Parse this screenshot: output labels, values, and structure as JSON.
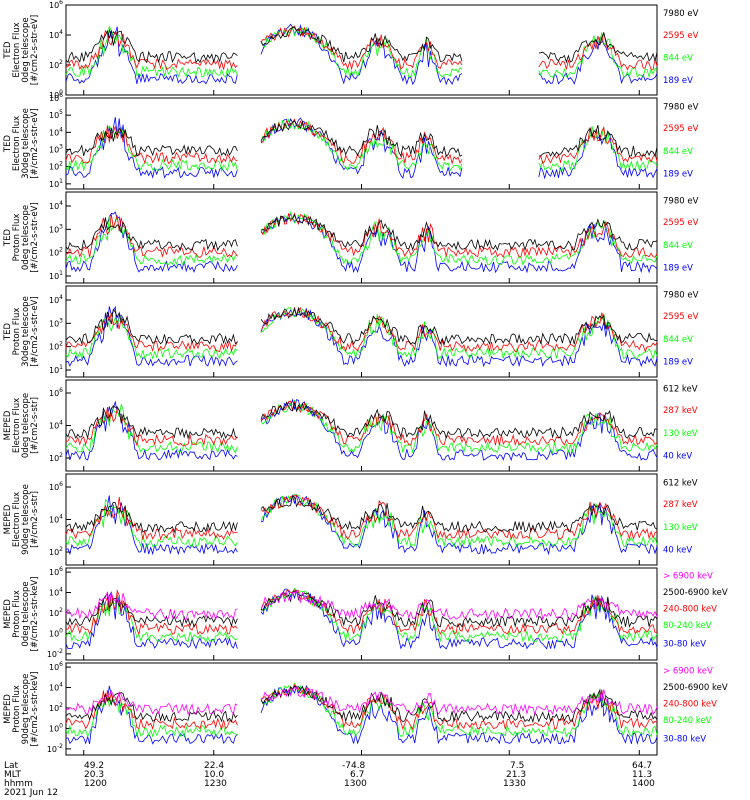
{
  "x_axis": {
    "row_labels": [
      "Lat",
      "MLT",
      "hhmm",
      "2021 Jun 12"
    ],
    "columns": [
      {
        "lat": "49.2",
        "mlt": "20.3",
        "hhmm": "1200"
      },
      {
        "lat": "22.4",
        "mlt": "10.0",
        "hhmm": "1230"
      },
      {
        "lat": "-74.8",
        "mlt": "6.7",
        "hhmm": "1300"
      },
      {
        "lat": "7.5",
        "mlt": "21.3",
        "hhmm": "1330"
      },
      {
        "lat": "64.7",
        "mlt": "11.3",
        "hhmm": "1400"
      }
    ]
  },
  "colors": {
    "black": "#000000",
    "red": "#ff0000",
    "green": "#00ff00",
    "blue": "#0000ff",
    "magenta": "#ff00ff"
  },
  "chart_data": [
    {
      "type": "line",
      "ylabel_lines": [
        "TED",
        "Electron Flux",
        "0deg telescope",
        "[#/cm2-s-str-eV]"
      ],
      "yticks": [
        "10^0",
        "10^2",
        "10^4",
        "10^6"
      ],
      "ylim_exp": [
        0,
        6
      ],
      "legend": [
        {
          "text": "7980 eV",
          "color": "#000000"
        },
        {
          "text": "2595 eV",
          "color": "#ff0000"
        },
        {
          "text": "844 eV",
          "color": "#00ff00"
        },
        {
          "text": "189 eV",
          "color": "#0000ff"
        }
      ]
    },
    {
      "type": "line",
      "ylabel_lines": [
        "TED",
        "Electron Flux",
        "30deg telescope",
        "[#/cm2-s-str-eV]"
      ],
      "yticks": [
        "10^1",
        "10^2",
        "10^3",
        "10^4",
        "10^5",
        "10^6"
      ],
      "ylim_exp": [
        0.7,
        6
      ],
      "legend": [
        {
          "text": "7980 eV",
          "color": "#000000"
        },
        {
          "text": "2595 eV",
          "color": "#ff0000"
        },
        {
          "text": "844 eV",
          "color": "#00ff00"
        },
        {
          "text": "189 eV",
          "color": "#0000ff"
        }
      ]
    },
    {
      "type": "line",
      "ylabel_lines": [
        "TED",
        "Proton Flux",
        "0deg telescope",
        "[#/cm2-s-str-eV]"
      ],
      "yticks": [
        "10^1",
        "10^2",
        "10^3",
        "10^4"
      ],
      "ylim_exp": [
        0.7,
        4.6
      ],
      "legend": [
        {
          "text": "7980 eV",
          "color": "#000000"
        },
        {
          "text": "2595 eV",
          "color": "#ff0000"
        },
        {
          "text": "844 eV",
          "color": "#00ff00"
        },
        {
          "text": "189 eV",
          "color": "#0000ff"
        }
      ]
    },
    {
      "type": "line",
      "ylabel_lines": [
        "TED",
        "Proton Flux",
        "30deg telescope",
        "[#/cm2-s-str-eV]"
      ],
      "yticks": [
        "10^1",
        "10^2",
        "10^3",
        "10^4"
      ],
      "ylim_exp": [
        0.7,
        4.6
      ],
      "legend": [
        {
          "text": "7980 eV",
          "color": "#000000"
        },
        {
          "text": "2595 eV",
          "color": "#ff0000"
        },
        {
          "text": "844 eV",
          "color": "#00ff00"
        },
        {
          "text": "189 eV",
          "color": "#0000ff"
        }
      ]
    },
    {
      "type": "line",
      "ylabel_lines": [
        "MEPED",
        "Electron Flux",
        "0deg telescope",
        "[#/cm2-s-str]"
      ],
      "yticks": [
        "10^2",
        "10^4",
        "10^6"
      ],
      "ylim_exp": [
        1.2,
        6.8
      ],
      "legend": [
        {
          "text": "612 keV",
          "color": "#000000"
        },
        {
          "text": "287 keV",
          "color": "#ff0000"
        },
        {
          "text": "130 keV",
          "color": "#00ff00"
        },
        {
          "text": "40 keV",
          "color": "#0000ff"
        }
      ]
    },
    {
      "type": "line",
      "ylabel_lines": [
        "MEPED",
        "Electron Flux",
        "90deg telescope",
        "[#/cm2-s-str]"
      ],
      "yticks": [
        "10^2",
        "10^4",
        "10^6"
      ],
      "ylim_exp": [
        1.2,
        6.8
      ],
      "legend": [
        {
          "text": "612 keV",
          "color": "#000000"
        },
        {
          "text": "287 keV",
          "color": "#ff0000"
        },
        {
          "text": "130 keV",
          "color": "#00ff00"
        },
        {
          "text": "40 keV",
          "color": "#0000ff"
        }
      ]
    },
    {
      "type": "line",
      "ylabel_lines": [
        "MEPED",
        "Proton Flux",
        "0deg telescope",
        "[#/cm2-s-str-keV]"
      ],
      "yticks": [
        "10^-2",
        "10^0",
        "10^2",
        "10^4",
        "10^6"
      ],
      "ylim_exp": [
        -2.6,
        6.4
      ],
      "legend": [
        {
          "text": "> 6900 keV",
          "color": "#ff00ff"
        },
        {
          "text": "2500-6900 keV",
          "color": "#000000"
        },
        {
          "text": "240-800 keV",
          "color": "#ff0000"
        },
        {
          "text": "80-240 keV",
          "color": "#00ff00"
        },
        {
          "text": "30-80 keV",
          "color": "#0000ff"
        }
      ]
    },
    {
      "type": "line",
      "ylabel_lines": [
        "MEPED",
        "Proton Flux",
        "90deg telescope",
        "[#/cm2-s-str-keV]"
      ],
      "yticks": [
        "10^-2",
        "10^0",
        "10^2",
        "10^4",
        "10^6"
      ],
      "ylim_exp": [
        -2.6,
        6.4
      ],
      "legend": [
        {
          "text": "> 6900 keV",
          "color": "#ff00ff"
        },
        {
          "text": "2500-6900 keV",
          "color": "#000000"
        },
        {
          "text": "240-800 keV",
          "color": "#ff0000"
        },
        {
          "text": "80-240 keV",
          "color": "#00ff00"
        },
        {
          "text": "30-80 keV",
          "color": "#0000ff"
        }
      ]
    }
  ]
}
